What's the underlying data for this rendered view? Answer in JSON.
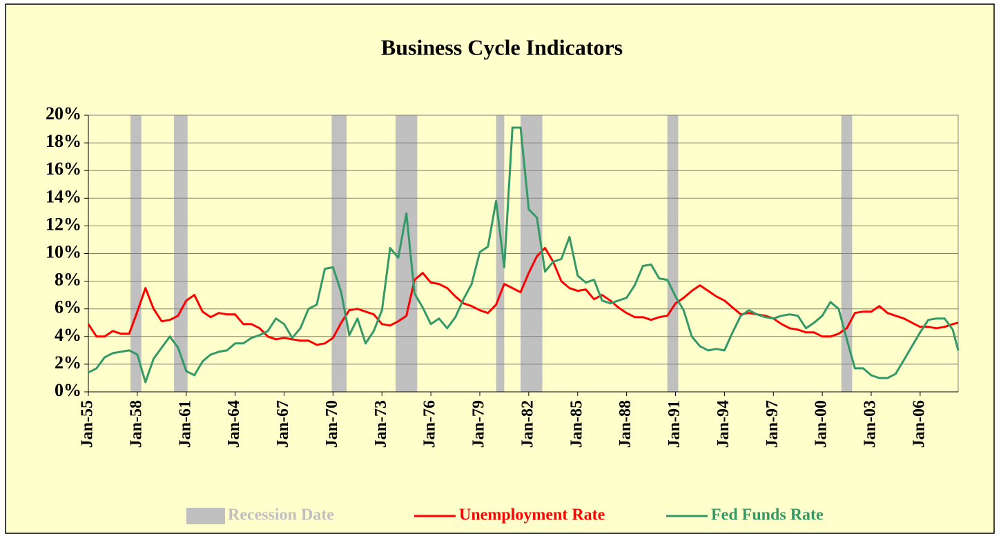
{
  "chart_data": {
    "type": "line",
    "title": "Business Cycle Indicators",
    "x": [
      "1955-01",
      "1955-07",
      "1956-01",
      "1956-07",
      "1957-01",
      "1957-07",
      "1958-01",
      "1958-07",
      "1959-01",
      "1959-07",
      "1960-01",
      "1960-07",
      "1961-01",
      "1961-07",
      "1962-01",
      "1962-07",
      "1963-01",
      "1963-07",
      "1964-01",
      "1964-07",
      "1965-01",
      "1965-07",
      "1966-01",
      "1966-07",
      "1967-01",
      "1967-07",
      "1968-01",
      "1968-07",
      "1969-01",
      "1969-07",
      "1970-01",
      "1970-07",
      "1971-01",
      "1971-07",
      "1972-01",
      "1972-07",
      "1973-01",
      "1973-07",
      "1974-01",
      "1974-07",
      "1975-01",
      "1975-07",
      "1976-01",
      "1976-07",
      "1977-01",
      "1977-07",
      "1978-01",
      "1978-07",
      "1979-01",
      "1979-07",
      "1980-01",
      "1980-07",
      "1981-01",
      "1981-07",
      "1982-01",
      "1982-07",
      "1983-01",
      "1983-07",
      "1984-01",
      "1984-07",
      "1985-01",
      "1985-07",
      "1986-01",
      "1986-07",
      "1987-01",
      "1987-07",
      "1988-01",
      "1988-07",
      "1989-01",
      "1989-07",
      "1990-01",
      "1990-07",
      "1991-01",
      "1991-07",
      "1992-01",
      "1992-07",
      "1993-01",
      "1993-07",
      "1994-01",
      "1994-07",
      "1995-01",
      "1995-07",
      "1996-01",
      "1996-07",
      "1997-01",
      "1997-07",
      "1998-01",
      "1998-07",
      "1999-01",
      "1999-07",
      "2000-01",
      "2000-07",
      "2001-01",
      "2001-07",
      "2002-01",
      "2002-07",
      "2003-01",
      "2003-07",
      "2004-01",
      "2004-07",
      "2005-01",
      "2005-07",
      "2006-01",
      "2006-07",
      "2007-01",
      "2007-07",
      "2008-01",
      "2008-05"
    ],
    "xlim": [
      "1955-01",
      "2008-05"
    ],
    "xticks": [
      {
        "value": "1955-01",
        "label": "Jan-55"
      },
      {
        "value": "1958-01",
        "label": "Jan-58"
      },
      {
        "value": "1961-01",
        "label": "Jan-61"
      },
      {
        "value": "1964-01",
        "label": "Jan-64"
      },
      {
        "value": "1967-01",
        "label": "Jan-67"
      },
      {
        "value": "1970-01",
        "label": "Jan-70"
      },
      {
        "value": "1973-01",
        "label": "Jan-73"
      },
      {
        "value": "1976-01",
        "label": "Jan-76"
      },
      {
        "value": "1979-01",
        "label": "Jan-79"
      },
      {
        "value": "1982-01",
        "label": "Jan-82"
      },
      {
        "value": "1985-01",
        "label": "Jan-85"
      },
      {
        "value": "1988-01",
        "label": "Jan-88"
      },
      {
        "value": "1991-01",
        "label": "Jan-91"
      },
      {
        "value": "1994-01",
        "label": "Jan-94"
      },
      {
        "value": "1997-01",
        "label": "Jan-97"
      },
      {
        "value": "2000-01",
        "label": "Jan-00"
      },
      {
        "value": "2003-01",
        "label": "Jan-03"
      },
      {
        "value": "2006-01",
        "label": "Jan-06"
      }
    ],
    "ylim": [
      0,
      20
    ],
    "yticks": [
      {
        "value": 0,
        "label": "0%"
      },
      {
        "value": 2,
        "label": "2%"
      },
      {
        "value": 4,
        "label": "4%"
      },
      {
        "value": 6,
        "label": "6%"
      },
      {
        "value": 8,
        "label": "8%"
      },
      {
        "value": 10,
        "label": "10%"
      },
      {
        "value": 12,
        "label": "12%"
      },
      {
        "value": 14,
        "label": "14%"
      },
      {
        "value": 16,
        "label": "16%"
      },
      {
        "value": 18,
        "label": "18%"
      },
      {
        "value": 20,
        "label": "20%"
      }
    ],
    "grid": true,
    "bands": {
      "name": "Recession Date",
      "color": "#c0c0c0",
      "periods": [
        [
          "1957-08",
          "1958-04"
        ],
        [
          "1960-04",
          "1961-02"
        ],
        [
          "1969-12",
          "1970-11"
        ],
        [
          "1973-11",
          "1975-03"
        ],
        [
          "1980-01",
          "1980-07"
        ],
        [
          "1981-07",
          "1982-11"
        ],
        [
          "1990-07",
          "1991-03"
        ],
        [
          "2001-03",
          "2001-11"
        ]
      ]
    },
    "series": [
      {
        "name": "Unemployment Rate",
        "color": "#ff0000",
        "values": [
          4.9,
          4.0,
          4.0,
          4.4,
          4.2,
          4.2,
          5.8,
          7.5,
          6.0,
          5.1,
          5.2,
          5.5,
          6.6,
          7.0,
          5.8,
          5.4,
          5.7,
          5.6,
          5.6,
          4.9,
          4.9,
          4.6,
          4.0,
          3.8,
          3.9,
          3.8,
          3.7,
          3.7,
          3.4,
          3.5,
          3.9,
          5.0,
          5.9,
          6.0,
          5.8,
          5.6,
          4.9,
          4.8,
          5.1,
          5.5,
          8.1,
          8.6,
          7.9,
          7.8,
          7.5,
          6.9,
          6.4,
          6.2,
          5.9,
          5.7,
          6.3,
          7.8,
          7.5,
          7.2,
          8.6,
          9.8,
          10.4,
          9.4,
          8.0,
          7.5,
          7.3,
          7.4,
          6.7,
          7.0,
          6.6,
          6.1,
          5.7,
          5.4,
          5.4,
          5.2,
          5.4,
          5.5,
          6.4,
          6.8,
          7.3,
          7.7,
          7.3,
          6.9,
          6.6,
          6.1,
          5.6,
          5.7,
          5.6,
          5.5,
          5.3,
          4.9,
          4.6,
          4.5,
          4.3,
          4.3,
          4.0,
          4.0,
          4.2,
          4.6,
          5.7,
          5.8,
          5.8,
          6.2,
          5.7,
          5.5,
          5.3,
          5.0,
          4.7,
          4.7,
          4.6,
          4.7,
          4.9,
          5.0
        ]
      },
      {
        "name": "Fed Funds Rate",
        "color": "#339966",
        "values": [
          1.4,
          1.7,
          2.5,
          2.8,
          2.9,
          3.0,
          2.7,
          0.7,
          2.4,
          3.2,
          4.0,
          3.2,
          1.5,
          1.2,
          2.2,
          2.7,
          2.9,
          3.0,
          3.5,
          3.5,
          3.9,
          4.1,
          4.4,
          5.3,
          4.9,
          3.9,
          4.6,
          6.0,
          6.3,
          8.9,
          9.0,
          7.2,
          4.1,
          5.3,
          3.5,
          4.4,
          5.9,
          10.4,
          9.7,
          12.9,
          7.1,
          6.1,
          4.9,
          5.3,
          4.6,
          5.4,
          6.7,
          7.8,
          10.1,
          10.5,
          13.8,
          9.0,
          19.1,
          19.1,
          13.2,
          12.6,
          8.7,
          9.4,
          9.6,
          11.2,
          8.4,
          7.9,
          8.1,
          6.6,
          6.4,
          6.6,
          6.8,
          7.7,
          9.1,
          9.2,
          8.2,
          8.1,
          6.9,
          5.9,
          4.0,
          3.3,
          3.0,
          3.1,
          3.0,
          4.3,
          5.5,
          5.9,
          5.6,
          5.4,
          5.3,
          5.5,
          5.6,
          5.5,
          4.6,
          5.0,
          5.5,
          6.5,
          6.0,
          3.8,
          1.7,
          1.7,
          1.2,
          1.0,
          1.0,
          1.3,
          2.3,
          3.3,
          4.3,
          5.2,
          5.3,
          5.3,
          4.5,
          3.0
        ]
      }
    ]
  }
}
